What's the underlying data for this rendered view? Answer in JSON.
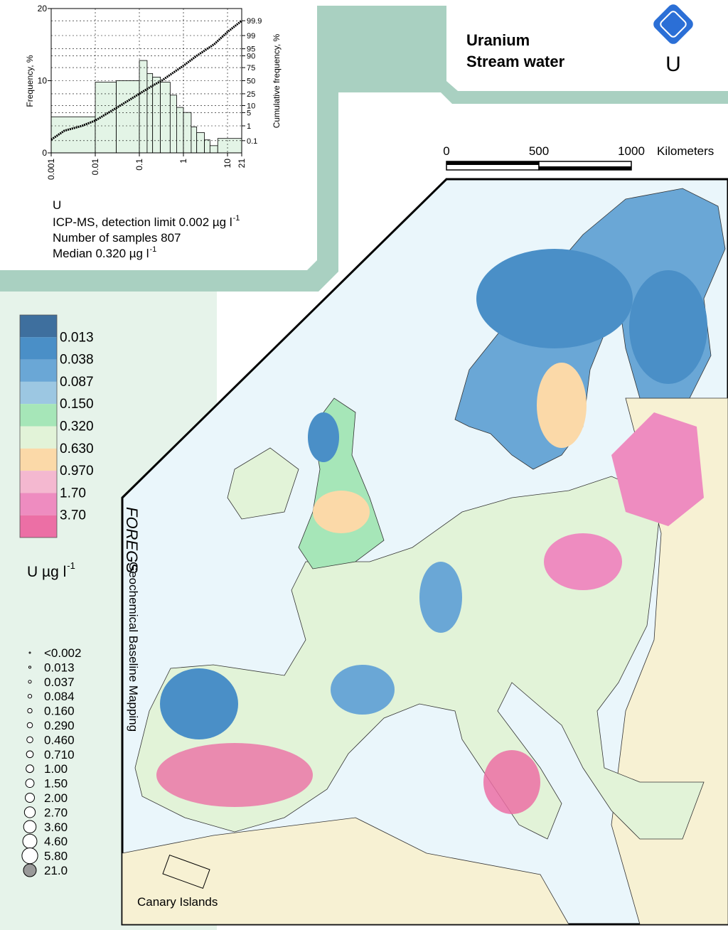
{
  "header": {
    "title": "Uranium",
    "subtitle": "Stream water",
    "symbol": "U"
  },
  "chart_data": {
    "type": "histogram",
    "element": "U",
    "y_label": "Frequency, %",
    "y2_label": "Cumulative frequency, %",
    "bins": [
      0.001,
      0.01,
      0.03,
      0.1,
      0.15,
      0.2,
      0.3,
      0.5,
      0.7,
      1,
      1.5,
      2,
      3,
      4,
      6,
      21
    ],
    "values": [
      5,
      9.8,
      10,
      12.8,
      11,
      10.5,
      9.8,
      8,
      6.3,
      5.6,
      3.6,
      2.8,
      1.8,
      1,
      2
    ],
    "color": "#e3f4e6",
    "log_x": true,
    "xlim": [
      0.001,
      21
    ],
    "xticks": [
      0.001,
      0.01,
      0.1,
      1,
      10,
      21
    ],
    "ylim": [
      0,
      20
    ],
    "yticks": [
      0,
      10,
      20
    ],
    "y2lim": [
      0.01,
      99.99
    ],
    "y2ticks": [
      0.1,
      1,
      5,
      10,
      25,
      50,
      75,
      90,
      95,
      99,
      99.9
    ],
    "grid": true,
    "cumulative": {
      "axis": "y2",
      "color": "#000000",
      "x": [
        0.001,
        0.002,
        0.005,
        0.01,
        0.03,
        0.1,
        0.2,
        0.32,
        0.5,
        1,
        2,
        5,
        10,
        21
      ],
      "values": [
        0.12,
        0.5,
        1,
        2,
        8,
        25,
        40,
        50,
        62,
        78,
        90,
        97,
        99.4,
        99.9
      ]
    },
    "notes": [
      {
        "text": "ICP-MS, detection limit 0.002 µg l",
        "sup": "-1"
      },
      {
        "text": "Number of samples 807"
      },
      {
        "text": "Median 0.320 µg l",
        "sup": "-1"
      }
    ]
  },
  "scale_bar": {
    "ticks": [
      "0",
      "500",
      "1000"
    ],
    "unit": "Kilometers"
  },
  "color_legend": {
    "colors": [
      "#3e6f9e",
      "#4a8fc7",
      "#6aa7d6",
      "#9cc7e2",
      "#a6e6b8",
      "#e2f3d8",
      "#fbd9a8",
      "#f4b8d0",
      "#ee8cc0",
      "#ec6fa5"
    ],
    "breaks": [
      "0.013",
      "0.038",
      "0.087",
      "0.150",
      "0.320",
      "0.630",
      "0.970",
      "1.70",
      "3.70"
    ],
    "unit": {
      "text": "U µg l",
      "sup": "-1"
    }
  },
  "symbol_legend": [
    "<0.002",
    "0.013",
    "0.037",
    "0.084",
    "0.160",
    "0.290",
    "0.460",
    "0.710",
    "1.00",
    "1.50",
    "2.00",
    "2.70",
    "3.60",
    "4.60",
    "5.80",
    "21.0"
  ],
  "branding": {
    "logo": "FOREGS",
    "tagline": "Geochemical Baseline Mapping"
  },
  "inset_label": "Canary Islands"
}
